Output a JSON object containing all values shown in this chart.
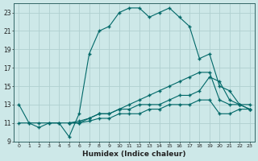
{
  "xlabel": "Humidex (Indice chaleur)",
  "ylabel": "",
  "background_color": "#cde8e8",
  "grid_color": "#b0d0d0",
  "line_color": "#006868",
  "xlim": [
    -0.5,
    23.5
  ],
  "ylim": [
    9,
    24
  ],
  "xticks": [
    0,
    1,
    2,
    3,
    4,
    5,
    6,
    7,
    8,
    9,
    10,
    11,
    12,
    13,
    14,
    15,
    16,
    17,
    18,
    19,
    20,
    21,
    22,
    23
  ],
  "yticks": [
    9,
    11,
    13,
    15,
    17,
    19,
    21,
    23
  ],
  "lines": [
    {
      "x": [
        0,
        1,
        2,
        3,
        4,
        5,
        6,
        7,
        8,
        9,
        10,
        11,
        12,
        13,
        14,
        15,
        16,
        17,
        18,
        19,
        20,
        21,
        22,
        23
      ],
      "y": [
        13,
        11,
        10.5,
        11,
        11,
        9.5,
        12,
        18.5,
        21,
        21.5,
        23,
        23.5,
        23.5,
        22.5,
        23,
        23.5,
        22.5,
        21.5,
        18,
        18.5,
        15,
        14.5,
        13,
        12.5
      ]
    },
    {
      "x": [
        0,
        1,
        2,
        3,
        4,
        5,
        6,
        7,
        8,
        9,
        10,
        11,
        12,
        13,
        14,
        15,
        16,
        17,
        18,
        19,
        20,
        21,
        22,
        23
      ],
      "y": [
        11,
        11,
        11,
        11,
        11,
        11,
        11,
        11.5,
        12,
        12,
        12.5,
        13,
        13.5,
        14,
        14.5,
        15,
        15.5,
        16,
        16.5,
        16.5,
        13.5,
        13,
        13,
        12.5
      ]
    },
    {
      "x": [
        5,
        6,
        7,
        8,
        9,
        10,
        11,
        12,
        13,
        14,
        15,
        16,
        17,
        18,
        19,
        20,
        21,
        22,
        23
      ],
      "y": [
        11,
        11.2,
        11.5,
        12,
        12,
        12.5,
        12.5,
        13,
        13,
        13,
        13.5,
        14,
        14,
        14.5,
        16,
        15.5,
        13.5,
        13,
        13
      ]
    },
    {
      "x": [
        5,
        6,
        7,
        8,
        9,
        10,
        11,
        12,
        13,
        14,
        15,
        16,
        17,
        18,
        19,
        20,
        21,
        22,
        23
      ],
      "y": [
        11,
        11,
        11.2,
        11.5,
        11.5,
        12,
        12,
        12,
        12.5,
        12.5,
        13,
        13,
        13,
        13.5,
        13.5,
        12,
        12,
        12.5,
        12.5
      ]
    }
  ]
}
